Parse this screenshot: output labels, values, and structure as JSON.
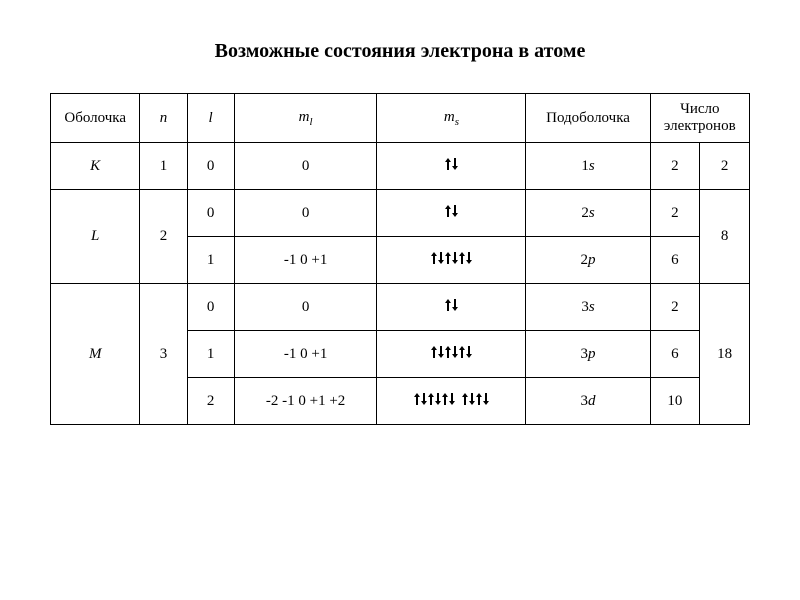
{
  "title": "Возможные состояния электрона в атоме",
  "headers": {
    "shell": "Оболочка",
    "n": "n",
    "l": "l",
    "ml_base": "m",
    "ml_sub": "l",
    "ms_base": "m",
    "ms_sub": "s",
    "subshell": "Подоболочка",
    "electrons": "Число электронов"
  },
  "rows": {
    "K": {
      "shell": "K",
      "n": "1",
      "l": "0",
      "ml": "0",
      "ms_pairs": 1,
      "subshell": "1s",
      "e_sub": "2",
      "e_total": "2"
    },
    "L0": {
      "shell": "L",
      "n": "2",
      "l": "0",
      "ml": "0",
      "ms_pairs": 1,
      "subshell": "2s",
      "e_sub": "2",
      "e_total": "8"
    },
    "L1": {
      "l": "1",
      "ml": "-1  0  +1",
      "ms_pairs": 3,
      "subshell": "2p",
      "e_sub": "6"
    },
    "M0": {
      "shell": "M",
      "n": "3",
      "l": "0",
      "ml": "0",
      "ms_pairs": 1,
      "subshell": "3s",
      "e_sub": "2",
      "e_total": "18"
    },
    "M1": {
      "l": "1",
      "ml": "-1  0  +1",
      "ms_pairs": 3,
      "subshell": "3p",
      "e_sub": "6"
    },
    "M2": {
      "l": "2",
      "ml": "-2 -1 0 +1 +2",
      "ms_pairs": 5,
      "subshell": "3d",
      "e_sub": "10"
    }
  },
  "style": {
    "arrow_color": "#000000",
    "arrow_width": 6,
    "arrow_height": 12,
    "border_color": "#000000",
    "background": "#ffffff",
    "font_family": "Times New Roman",
    "title_fontsize": 20,
    "cell_fontsize": 15
  }
}
